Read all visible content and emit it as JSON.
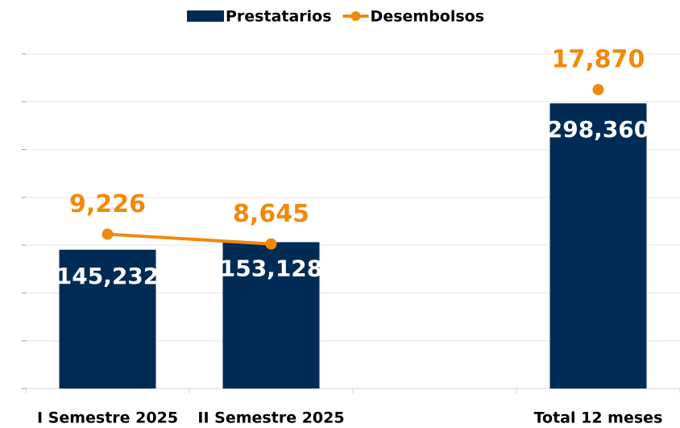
{
  "chart_data": {
    "type": "bar-line",
    "categories": [
      "I Semestre 2025",
      "II Semestre 2025",
      null,
      "Total 12 meses"
    ],
    "series": [
      {
        "name": "Prestatarios",
        "type": "bar",
        "color": "#002b55",
        "values": [
          145232,
          153128,
          null,
          298360
        ],
        "value_labels": [
          "145,232",
          "153,128",
          null,
          "298,360"
        ]
      },
      {
        "name": "Desembolsos",
        "type": "line",
        "axis": "y2",
        "color": "#f08a0c",
        "values": [
          9226,
          8645,
          null,
          17870
        ],
        "value_labels": [
          "9,226",
          "8,645",
          null,
          "17,870"
        ]
      }
    ],
    "ylim": [
      0,
      350000
    ],
    "yticks": [
      0,
      50000,
      100000,
      150000,
      200000,
      250000,
      300000,
      350000
    ],
    "y2lim": [
      0,
      20000
    ],
    "grid": true,
    "legend": "top"
  }
}
